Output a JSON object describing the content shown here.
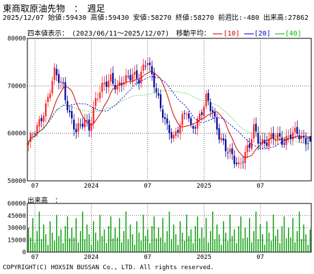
{
  "header": {
    "title": "東商取原油先物　：　週足",
    "stats_line": "2025/12/07 始値:59430 高値:59430 安値:58270 終値:58270 前週比:-480 出来高:27862"
  },
  "legend": {
    "prefix": "四本値表示：　(2023/06/11～2025/12/07)　移動平均：",
    "ma10": "[10]",
    "ma20": "[20]",
    "ma40": "[40]",
    "ma10_color": "#cc0000",
    "ma20_color": "#0000cc",
    "ma40_color": "#00bb00"
  },
  "volume_label": "出来高　：",
  "copyright": "COPYRIGHT(C) HOXSIN BUSSAN Co., LTD. All rights reserved.",
  "colors": {
    "up": "#ff2222",
    "down": "#000099",
    "volume": "#009900",
    "grid": "#000000"
  },
  "chart_data": {
    "type": "candlestick",
    "date_range": [
      "2023/06/11",
      "2025/12/07"
    ],
    "price_axis": {
      "ylim": [
        50000,
        80000
      ],
      "ticks": [
        50000,
        60000,
        70000,
        80000
      ]
    },
    "volume_axis": {
      "ylim": [
        0,
        60000
      ],
      "ticks": [
        0,
        15000,
        30000,
        45000,
        60000
      ]
    },
    "x_tick_labels": [
      "07",
      "2024",
      "07",
      "2025",
      "07"
    ],
    "x_tick_weeks": [
      3,
      29,
      55,
      81,
      107
    ],
    "moving_averages": [
      10,
      20,
      40
    ],
    "last_bar": {
      "date": "2025/12/07",
      "open": 59430,
      "high": 59430,
      "low": 58270,
      "close": 58270,
      "volume": 27862
    },
    "anchor_closes": [
      [
        0,
        58000
      ],
      [
        4,
        61000
      ],
      [
        8,
        66000
      ],
      [
        12,
        72500
      ],
      [
        16,
        70000
      ],
      [
        19,
        64000
      ],
      [
        22,
        60000
      ],
      [
        26,
        63000
      ],
      [
        28,
        61500
      ],
      [
        31,
        66500
      ],
      [
        35,
        70500
      ],
      [
        38,
        72000
      ],
      [
        41,
        69000
      ],
      [
        44,
        71000
      ],
      [
        48,
        73000
      ],
      [
        51,
        71000
      ],
      [
        55,
        75500
      ],
      [
        58,
        71000
      ],
      [
        61,
        65000
      ],
      [
        64,
        61000
      ],
      [
        67,
        59500
      ],
      [
        70,
        62000
      ],
      [
        73,
        64500
      ],
      [
        75,
        61000
      ],
      [
        78,
        63000
      ],
      [
        80,
        64500
      ],
      [
        82,
        67000
      ],
      [
        85,
        64500
      ],
      [
        88,
        60000
      ],
      [
        91,
        56500
      ],
      [
        94,
        55000
      ],
      [
        97,
        53500
      ],
      [
        99,
        55000
      ],
      [
        102,
        57000
      ],
      [
        104,
        61000
      ],
      [
        106,
        59000
      ],
      [
        109,
        58000
      ],
      [
        112,
        58500
      ],
      [
        115,
        59500
      ],
      [
        118,
        58500
      ],
      [
        121,
        59500
      ],
      [
        124,
        60000
      ],
      [
        127,
        59000
      ],
      [
        130,
        58270
      ]
    ],
    "volume_cycle": [
      30000,
      18000,
      42000,
      12000,
      26000,
      50000,
      16000,
      34000,
      22000,
      9000,
      38000,
      24000,
      14000,
      46000,
      20000,
      28000,
      11000,
      32000,
      44000,
      17000
    ]
  }
}
